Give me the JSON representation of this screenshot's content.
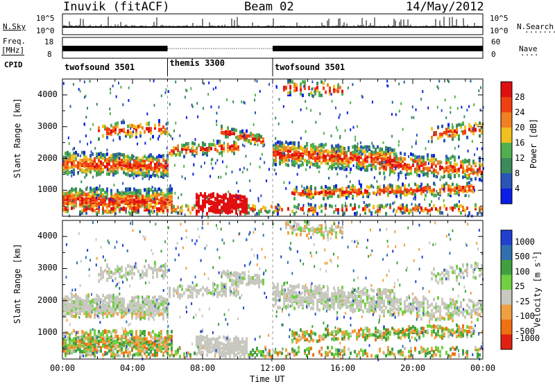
{
  "header": {
    "station": "Inuvik (fitACF)",
    "beam": "Beam 02",
    "date": "14/May/2012"
  },
  "strip_labels": {
    "nsky": "N.Sky",
    "nsearch": "N.Search",
    "freq_top": "Freq.",
    "freq_unit": "[MHz]",
    "nave": "Nave",
    "cpid": "CPID",
    "nsky_ticks": [
      "10^5",
      "10^0"
    ],
    "nsearch_ticks": [
      "10^5",
      "10^0"
    ],
    "freq_ticks": [
      "18",
      "8"
    ],
    "nave_ticks": [
      "60",
      "0"
    ]
  },
  "cpid_segments": [
    {
      "label": "twofsound 3501",
      "start": 0,
      "end": 6
    },
    {
      "label": "themis 3300",
      "start": 6,
      "end": 12
    },
    {
      "label": "twofsound 3501",
      "start": 12,
      "end": 24
    }
  ],
  "chart_data": [
    {
      "type": "heatmap",
      "title": "",
      "xlabel": "Time UT",
      "ylabel": "Slant Range [km]",
      "xlim": [
        0,
        24
      ],
      "ylim": [
        180,
        4500
      ],
      "x_ticks": [
        "00:00",
        "04:00",
        "08:00",
        "12:00",
        "16:00",
        "20:00",
        "00:00"
      ],
      "y_ticks": [
        1000,
        2000,
        3000,
        4000
      ],
      "colorbar": {
        "label": "Power [dB]",
        "ticks": [
          4,
          8,
          12,
          16,
          20,
          24,
          28
        ]
      }
    },
    {
      "type": "heatmap",
      "title": "",
      "xlabel": "Time UT",
      "ylabel": "Slant Range [km]",
      "xlim": [
        0,
        24
      ],
      "ylim": [
        180,
        4500
      ],
      "x_ticks": [
        "00:00",
        "04:00",
        "08:00",
        "12:00",
        "16:00",
        "20:00",
        "00:00"
      ],
      "y_ticks": [
        1000,
        2000,
        3000,
        4000
      ],
      "colorbar": {
        "label": "Velocity [m s",
        "label_sup": "-1",
        "label_end": "]",
        "ticks": [
          "1000",
          "500",
          "100",
          "25",
          "-25",
          "-100",
          "-500",
          "-1000"
        ]
      }
    }
  ],
  "colors": {
    "power_scale": [
      "#0a1ee6",
      "#2a55b8",
      "#3a8a5a",
      "#50b050",
      "#f0c020",
      "#f08020",
      "#f04010",
      "#e01010"
    ],
    "velocity_scale": [
      "#2040d0",
      "#3070b0",
      "#40a040",
      "#70d040",
      "#c8c8c0",
      "#f0a040",
      "#f07010",
      "#e02010"
    ]
  }
}
